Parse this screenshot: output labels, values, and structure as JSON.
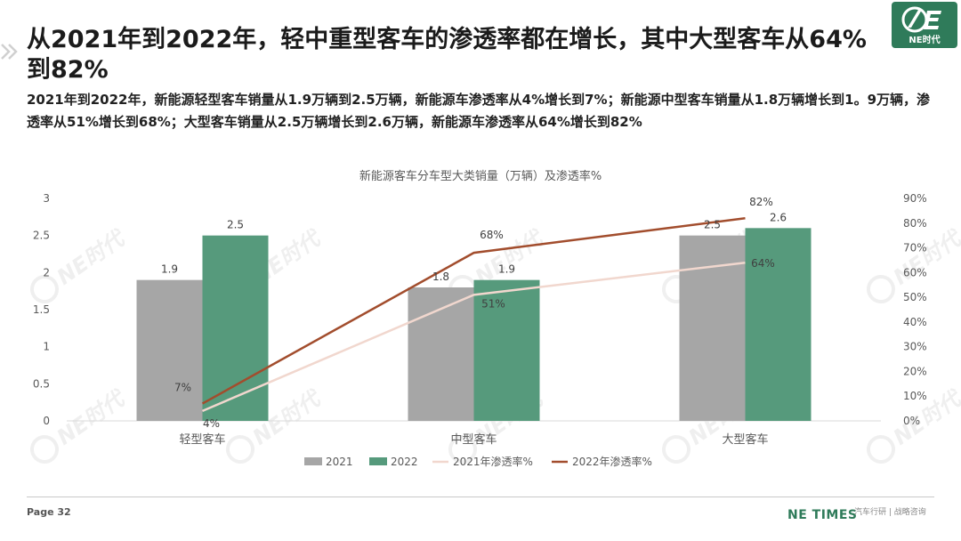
{
  "header": {
    "title": "从2021年到2022年，轻中重型客车的渗透率都在增长，其中大型客车从64%到82%",
    "subtitle": "2021年到2022年，新能源轻型客车销量从1.9万辆到2.5万辆，新能源车渗透率从4%增长到7%；新能源中型客车销量从1.8万辆增长到1。9万辆，渗透率从51%增长到68%；大型客车销量从2.5万辆增长到2.6万辆，新能源车渗透率从64%增长到82%"
  },
  "logo": {
    "text": "NE时代"
  },
  "watermark": {
    "text": "NE时代"
  },
  "footer": {
    "page": "Page 32",
    "brand": "NE TIMES",
    "brand_sub": "汽车行研 | 战略咨询"
  },
  "colors": {
    "s2021": "#a6a6a6",
    "s2022": "#569a7c",
    "r2021": "#f1d7ce",
    "r2022": "#a24d2d",
    "brand": "#2f7b5a"
  },
  "chart_data": {
    "type": "bar",
    "title": "新能源客车分车型大类销量（万辆）及渗透率%",
    "categories": [
      "轻型客车",
      "中型客车",
      "大型客车"
    ],
    "series": [
      {
        "name": "2021",
        "type": "bar",
        "axis": "left",
        "values": [
          1.9,
          1.8,
          2.5
        ],
        "labels": [
          "1.9",
          "1.8",
          "2.5"
        ]
      },
      {
        "name": "2022",
        "type": "bar",
        "axis": "left",
        "values": [
          2.5,
          1.9,
          2.6
        ],
        "labels": [
          "2.5",
          "1.9",
          "2.6"
        ]
      },
      {
        "name": "2021年渗透率%",
        "type": "line",
        "axis": "right",
        "values": [
          4,
          51,
          64
        ],
        "labels": [
          "4%",
          "51%",
          "64%"
        ]
      },
      {
        "name": "2022年渗透率%",
        "type": "line",
        "axis": "right",
        "values": [
          7,
          68,
          82
        ],
        "labels": [
          "7%",
          "68%",
          "82%"
        ]
      }
    ],
    "ylim": [
      0,
      3
    ],
    "yticks": [
      "0",
      "0.5",
      "1",
      "1.5",
      "2",
      "2.5",
      "3"
    ],
    "y2lim": [
      0,
      90
    ],
    "y2ticks": [
      "0%",
      "10%",
      "20%",
      "30%",
      "40%",
      "50%",
      "60%",
      "70%",
      "80%",
      "90%"
    ],
    "grid": false,
    "legend": "bottom"
  }
}
